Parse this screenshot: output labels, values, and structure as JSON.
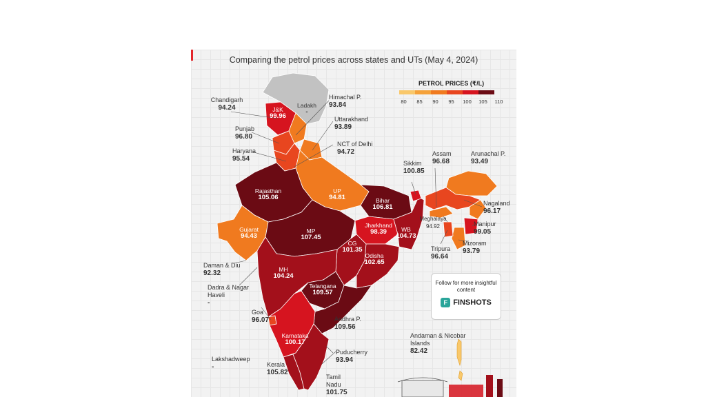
{
  "title": "Comparing the petrol prices across states and UTs (May 4, 2024)",
  "legend": {
    "title": "PETROL PRICES (₹/L)",
    "ticks": [
      "80",
      "85",
      "90",
      "95",
      "100",
      "105",
      "110"
    ],
    "colors": [
      "#f9c86b",
      "#f5a23a",
      "#f07a1f",
      "#e8461f",
      "#d6141f",
      "#a3101b",
      "#6b0b14"
    ]
  },
  "states": {
    "ladakh": {
      "name": "Ladakh",
      "value": "-"
    },
    "jk": {
      "name": "J&K",
      "value": "99.96"
    },
    "chandigarh": {
      "name": "Chandigarh",
      "value": "94.24"
    },
    "himachal": {
      "name": "Himachal P.",
      "value": "93.84"
    },
    "uttarakhand": {
      "name": "Uttarakhand",
      "value": "93.89"
    },
    "punjab": {
      "name": "Punjab",
      "value": "96.80"
    },
    "haryana": {
      "name": "Haryana",
      "value": "95.54"
    },
    "delhi": {
      "name": "NCT of Delhi",
      "value": "94.72"
    },
    "rajasthan": {
      "name": "Rajasthan",
      "value": "105.06"
    },
    "up": {
      "name": "UP",
      "value": "94.81"
    },
    "bihar": {
      "name": "Bihar",
      "value": "106.81"
    },
    "sikkim": {
      "name": "Sikkim",
      "value": "100.85"
    },
    "assam": {
      "name": "Assam",
      "value": "96.68"
    },
    "arunachal": {
      "name": "Arunachal P.",
      "value": "93.49"
    },
    "nagaland": {
      "name": "Nagaland",
      "value": "96.17"
    },
    "meghalaya": {
      "name": "Meghalaya",
      "value": "94.92"
    },
    "manipur": {
      "name": "Manipur",
      "value": "99.05"
    },
    "mizoram": {
      "name": "Mizoram",
      "value": "93.79"
    },
    "tripura": {
      "name": "Tripura",
      "value": "96.64"
    },
    "gujarat": {
      "name": "Gujarat",
      "value": "94.43"
    },
    "mp": {
      "name": "MP",
      "value": "107.45"
    },
    "jharkhand": {
      "name": "Jharkhand",
      "value": "98.39"
    },
    "wb": {
      "name": "WB",
      "value": "104.73"
    },
    "cg": {
      "name": "CG",
      "value": "101.35"
    },
    "odisha": {
      "name": "Odisha",
      "value": "102.65"
    },
    "daman": {
      "name": "Daman & Diu",
      "value": "92.32"
    },
    "mh": {
      "name": "MH",
      "value": "104.24"
    },
    "dadra": {
      "name": "Dadra & Nagar Haveli",
      "value": "-"
    },
    "telangana": {
      "name": "Telangana",
      "value": "109.57"
    },
    "goa": {
      "name": "Goa",
      "value": "96.07"
    },
    "andhra": {
      "name": "Andhra P.",
      "value": "109.56"
    },
    "karnataka": {
      "name": "Karnataka",
      "value": "100.17"
    },
    "andaman": {
      "name": "Andaman & Nicobar Islands",
      "value": "82.42"
    },
    "lakshadweep": {
      "name": "Lakshadweep",
      "value": "-"
    },
    "kerala": {
      "name": "Kerala",
      "value": "105.82"
    },
    "puducherry": {
      "name": "Puducherry",
      "value": "93.94"
    },
    "tn": {
      "name": "Tamil Nadu",
      "value": "101.75"
    }
  },
  "follow": {
    "text": "Follow for more insightful content",
    "brand": "FINSHOTS"
  }
}
